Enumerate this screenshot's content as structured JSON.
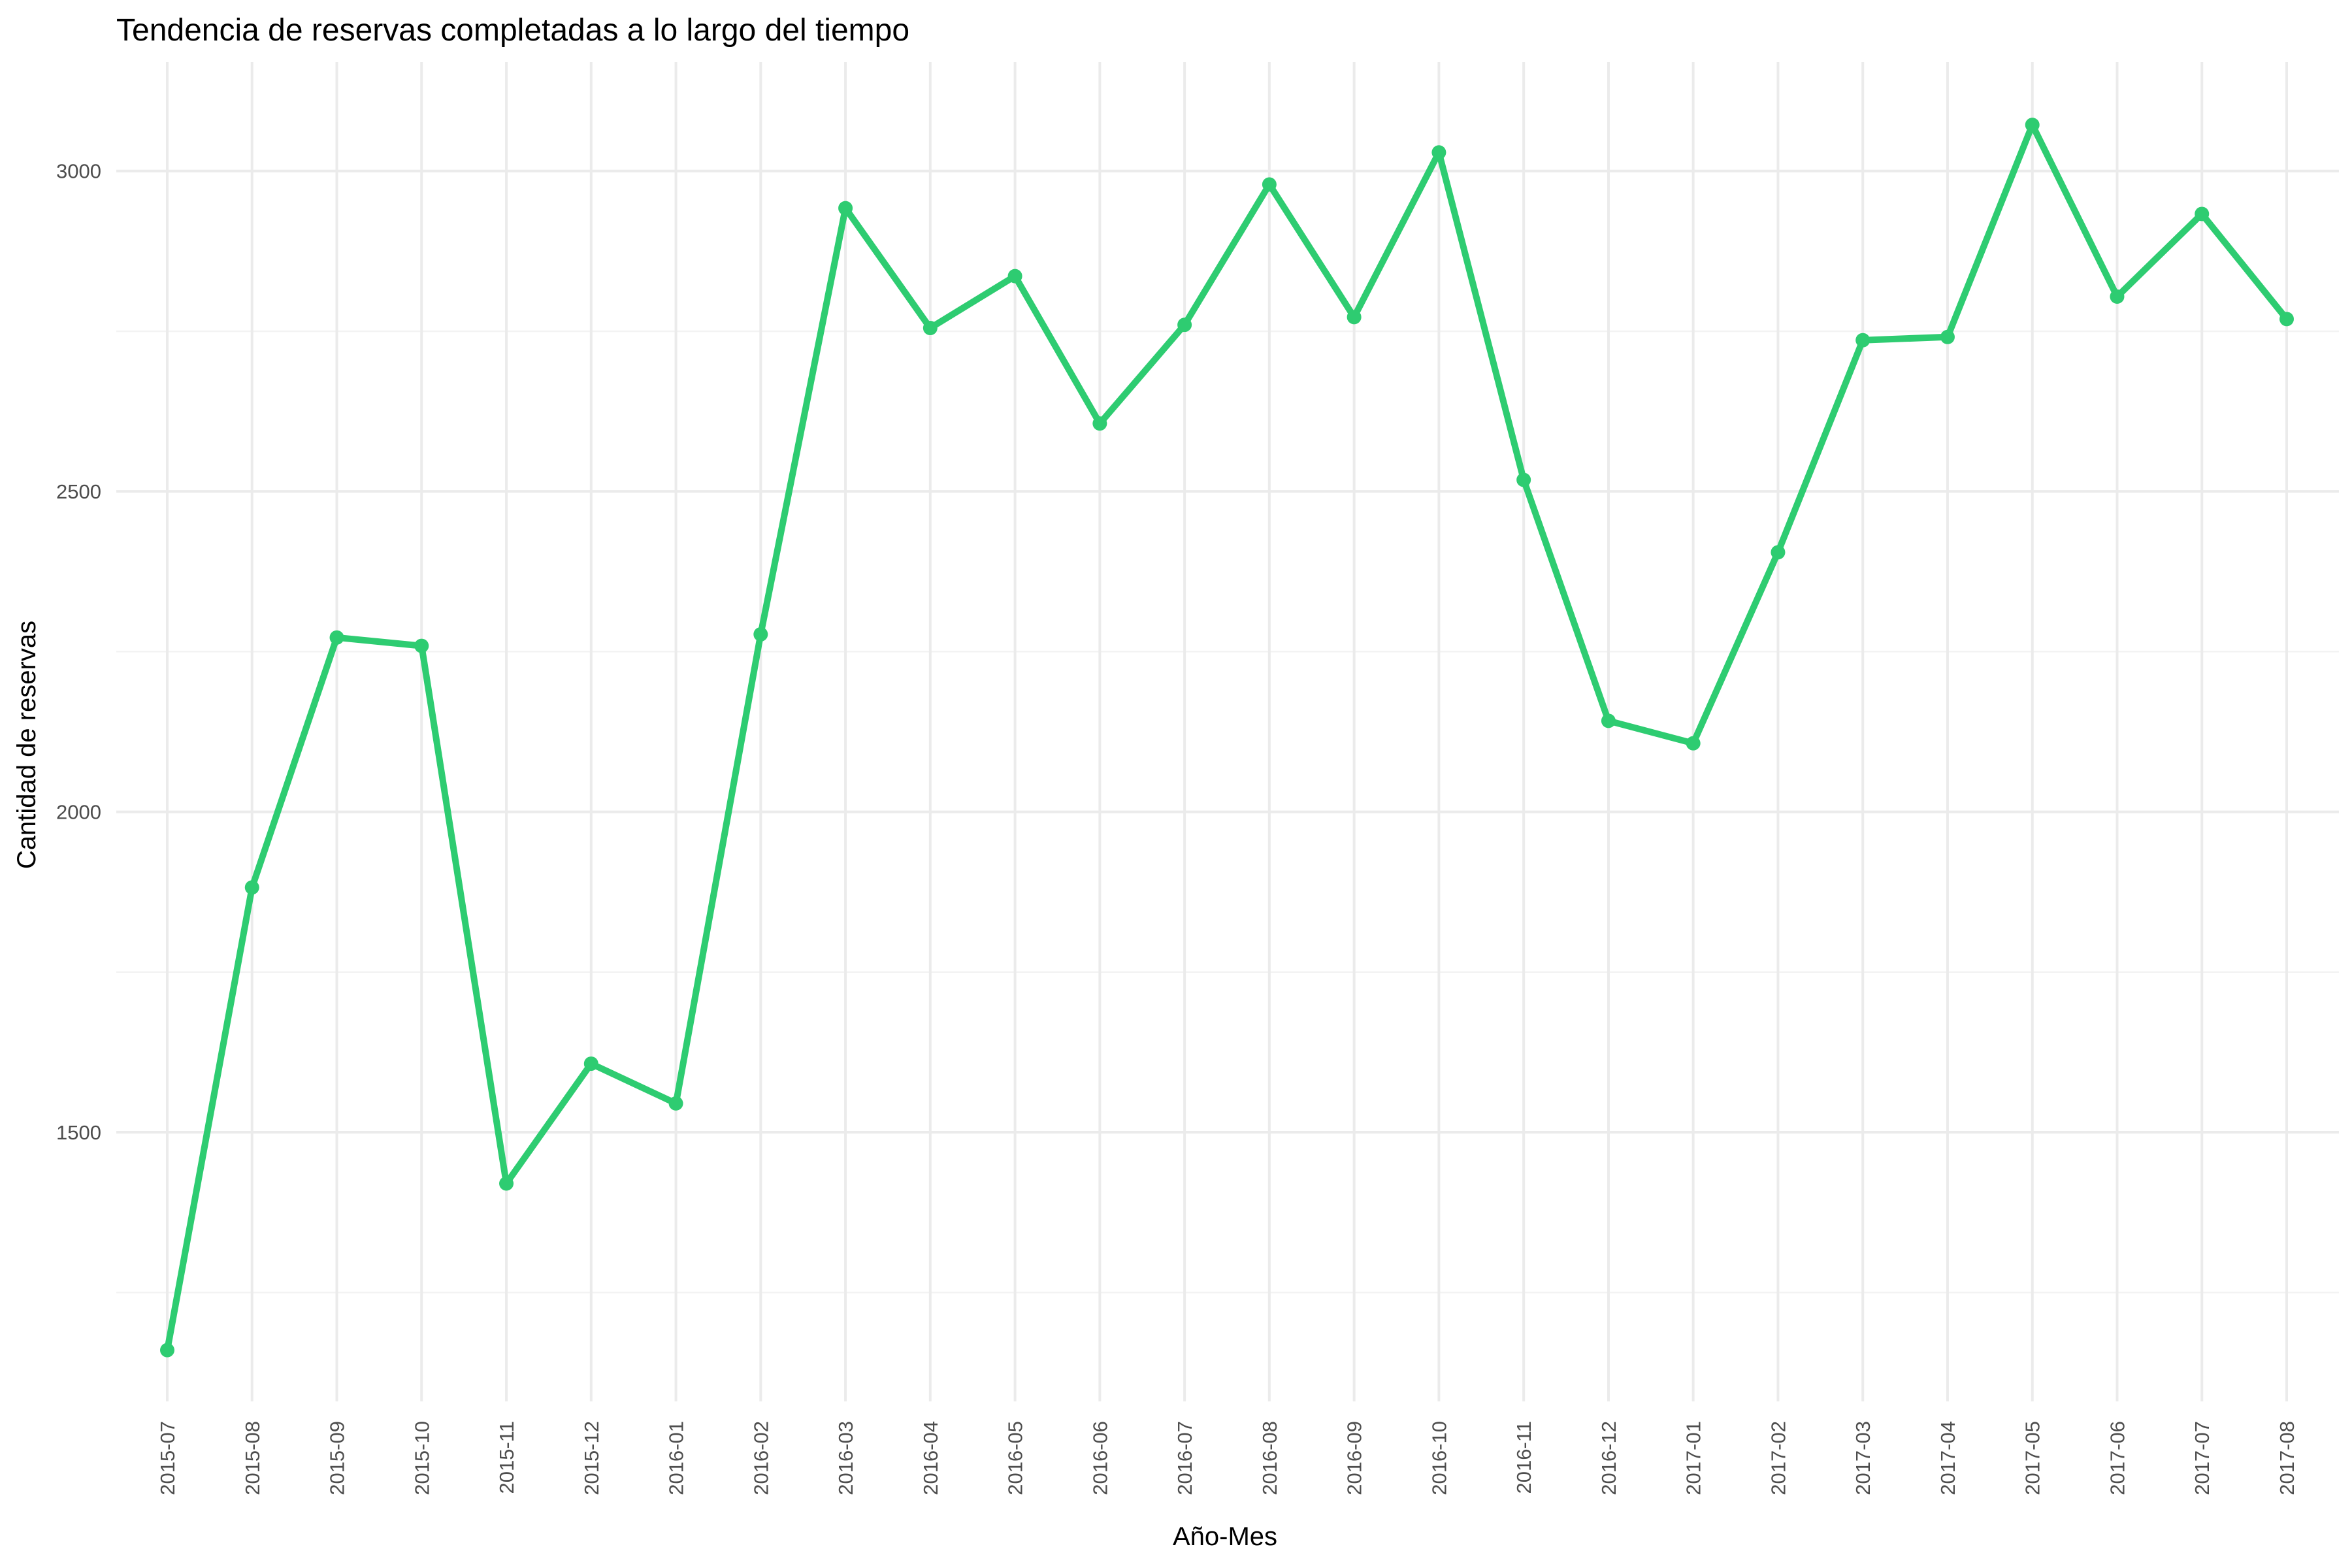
{
  "chart_data": {
    "type": "line",
    "title": "Tendencia de reservas completadas a lo largo del tiempo",
    "xlabel": "Año-Mes",
    "ylabel": "Cantidad de reservas",
    "categories": [
      "2015-07",
      "2015-08",
      "2015-09",
      "2015-10",
      "2015-11",
      "2015-12",
      "2016-01",
      "2016-02",
      "2016-03",
      "2016-04",
      "2016-05",
      "2016-06",
      "2016-07",
      "2016-08",
      "2016-09",
      "2016-10",
      "2016-11",
      "2016-12",
      "2017-01",
      "2017-02",
      "2017-03",
      "2017-04",
      "2017-05",
      "2017-06",
      "2017-07",
      "2017-08"
    ],
    "series": [
      {
        "values": [
          1160,
          1882,
          2272,
          2259,
          1420,
          1607,
          1545,
          2277,
          2942,
          2755,
          2836,
          2606,
          2760,
          2979,
          2772,
          3029,
          2518,
          2142,
          2107,
          2405,
          2736,
          2741,
          3072,
          2804,
          2933,
          2769
        ],
        "color": "#2ecc71"
      }
    ],
    "yticks": [
      1500,
      2000,
      2500,
      3000
    ],
    "yminor": [
      1250,
      1750,
      2250,
      2750
    ],
    "ylim": [
      1080,
      3170
    ],
    "grid": true,
    "legend": "none"
  }
}
